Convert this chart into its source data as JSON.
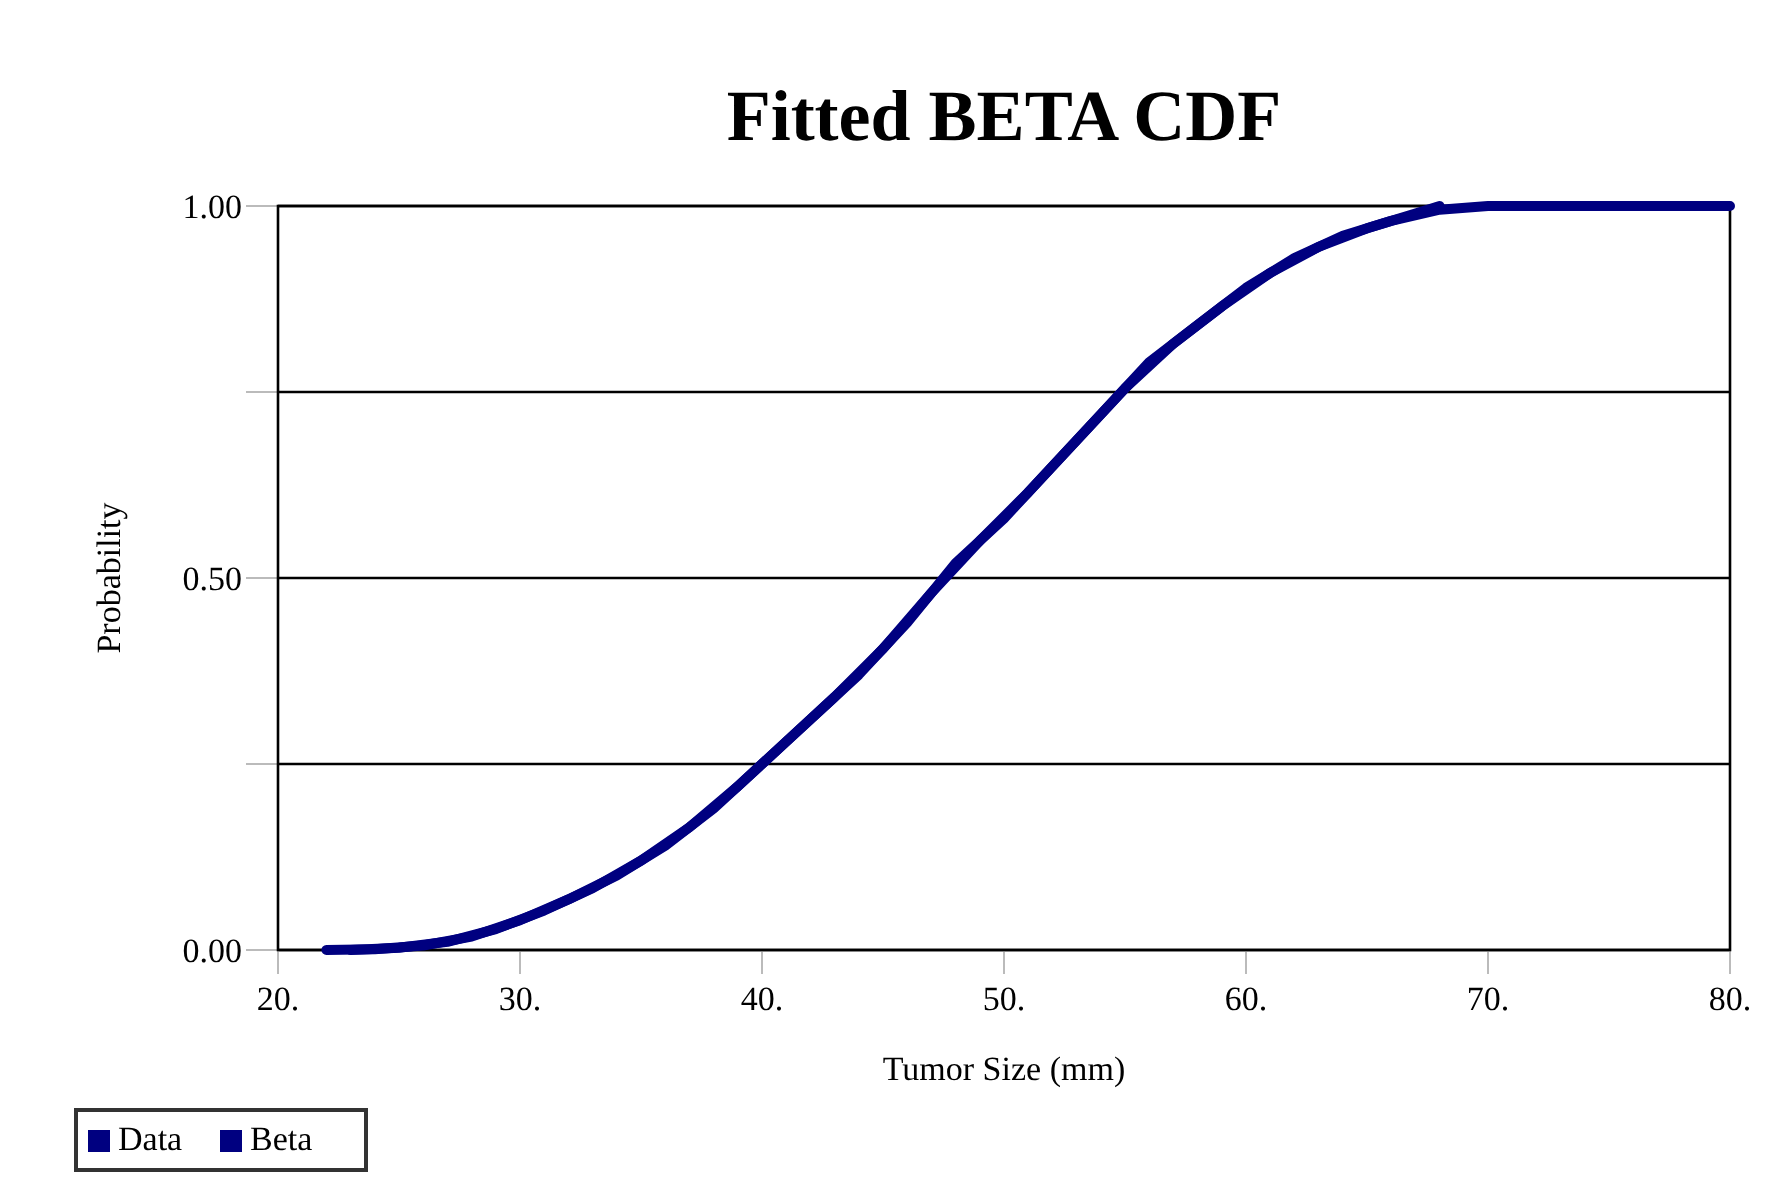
{
  "chart_data": {
    "type": "line",
    "title": "Fitted BETA CDF",
    "xlabel": "Tumor Size (mm)",
    "ylabel": "Probability",
    "xlim": [
      20,
      80
    ],
    "xticks": [
      {
        "value": 20,
        "label": "20."
      },
      {
        "value": 30,
        "label": "30."
      },
      {
        "value": 40,
        "label": "40."
      },
      {
        "value": 50,
        "label": "50."
      },
      {
        "value": 60,
        "label": "60."
      },
      {
        "value": 70,
        "label": "70."
      },
      {
        "value": 80,
        "label": "80."
      }
    ],
    "ylim": [
      0,
      1
    ],
    "yticks": [
      {
        "value": 0,
        "label": "0.00"
      },
      {
        "value": 0.25,
        "label": null
      },
      {
        "value": 0.5,
        "label": "0.50"
      },
      {
        "value": 0.75,
        "label": null
      },
      {
        "value": 1,
        "label": "1.00"
      }
    ],
    "grid": "y",
    "legend": "bottom left",
    "marker": "none",
    "line_style": "solid",
    "series": [
      {
        "name": "Data",
        "color": "#000080",
        "x": [
          23,
          25,
          27,
          29,
          31,
          33,
          35,
          37,
          39,
          41,
          43,
          45,
          47,
          49,
          51,
          53,
          55,
          57,
          59,
          61,
          63,
          65,
          67,
          68
        ],
        "values": [
          0,
          0.003,
          0.011,
          0.028,
          0.053,
          0.083,
          0.12,
          0.165,
          0.22,
          0.28,
          0.34,
          0.405,
          0.48,
          0.55,
          0.615,
          0.685,
          0.755,
          0.815,
          0.865,
          0.91,
          0.945,
          0.97,
          0.99,
          1
        ]
      },
      {
        "name": "Beta",
        "color": "#000080",
        "x": [
          22,
          24,
          26,
          28,
          30,
          32,
          34,
          36,
          38,
          40,
          42,
          44,
          46,
          48,
          50,
          52,
          54,
          56,
          58,
          60,
          62,
          64,
          66,
          68,
          70,
          80
        ],
        "values": [
          0,
          0.001,
          0.006,
          0.018,
          0.04,
          0.068,
          0.1,
          0.14,
          0.19,
          0.25,
          0.31,
          0.37,
          0.44,
          0.52,
          0.58,
          0.65,
          0.72,
          0.79,
          0.84,
          0.89,
          0.93,
          0.96,
          0.98,
          0.995,
          1,
          1
        ]
      }
    ]
  }
}
